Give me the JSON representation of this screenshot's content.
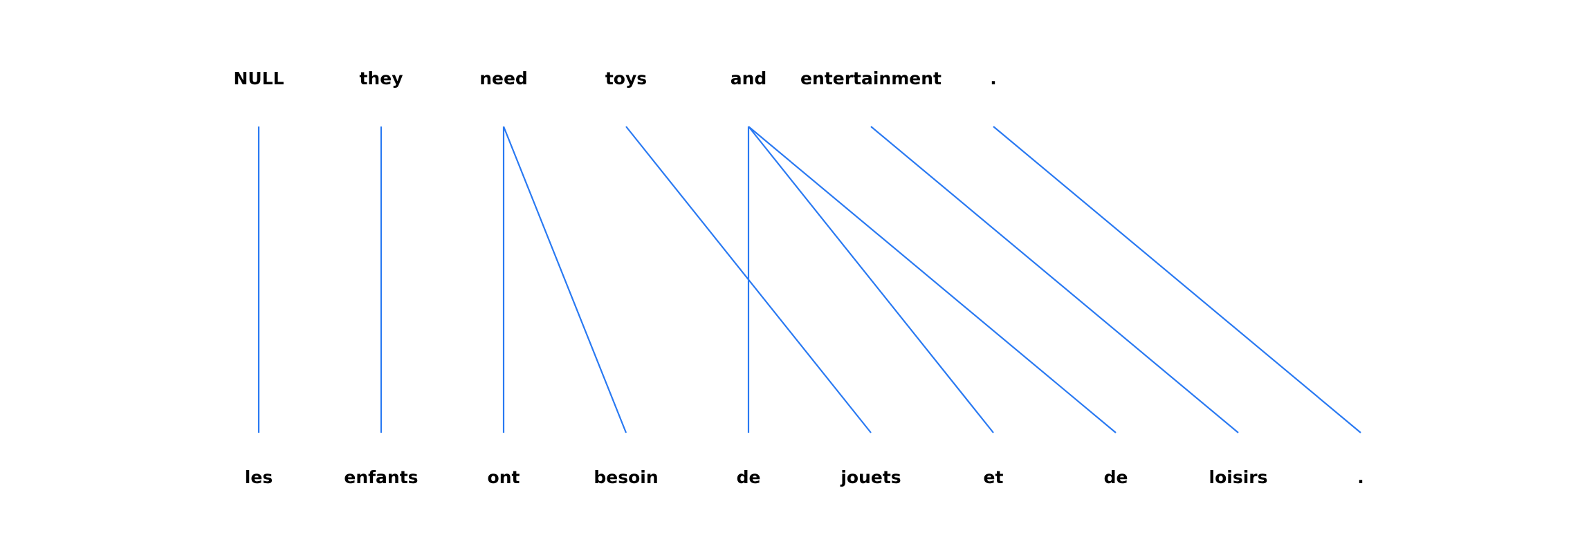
{
  "source_words": [
    "NULL",
    "they",
    "need",
    "toys",
    "and",
    "entertainment",
    "."
  ],
  "target_words": [
    "les",
    "enfants",
    "ont",
    "besoin",
    "de",
    "jouets",
    "et",
    "de",
    "loisirs",
    "."
  ],
  "alignments": [
    {
      "source": 0,
      "target": 0
    },
    {
      "source": 1,
      "target": 1
    },
    {
      "source": 2,
      "target": 2
    },
    {
      "source": 2,
      "target": 3
    },
    {
      "source": 3,
      "target": 5
    },
    {
      "source": 4,
      "target": 4
    },
    {
      "source": 4,
      "target": 6
    },
    {
      "source": 4,
      "target": 7
    },
    {
      "source": 5,
      "target": 8
    },
    {
      "source": 6,
      "target": 9
    }
  ],
  "colors": {
    "link": "#2979f2",
    "text": "#000000",
    "background": "#ffffff"
  }
}
